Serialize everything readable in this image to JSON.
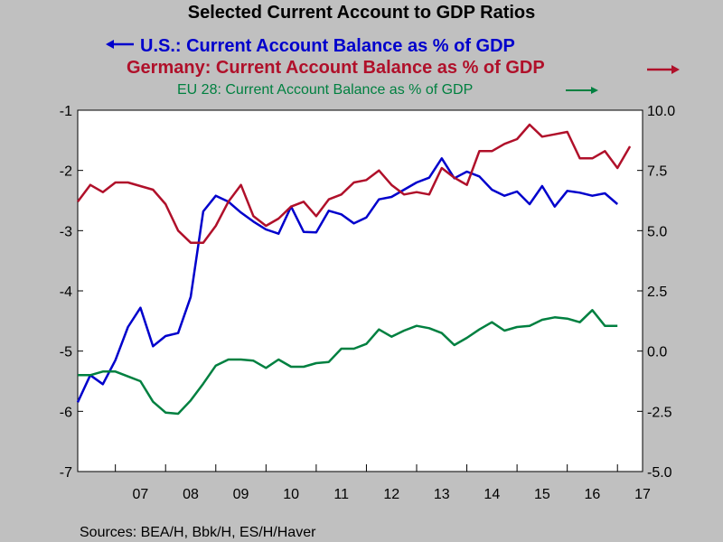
{
  "chart_data": {
    "type": "line",
    "title": "Selected Current Account to GDP Ratios",
    "source": "Sources:  BEA/H, Bbk/H, ES/H/Haver",
    "x_labels": [
      "07",
      "08",
      "09",
      "10",
      "11",
      "12",
      "13",
      "14",
      "15",
      "16",
      "17"
    ],
    "left_axis": {
      "ylim": [
        -7,
        -1
      ],
      "ticks": [
        "-1",
        "-2",
        "-3",
        "-4",
        "-5",
        "-6",
        "-7"
      ]
    },
    "right_axis": {
      "ylim": [
        -5.0,
        10.0
      ],
      "ticks": [
        "10.0",
        "7.5",
        "5.0",
        "2.5",
        "0.0",
        "-2.5",
        "-5.0"
      ]
    },
    "series": [
      {
        "name": "U.S.: Current Account Balance as % of GDP",
        "axis": "left",
        "arrow": "left",
        "color": "#0000cc",
        "x": [
          2006.25,
          2006.5,
          2006.75,
          2007.0,
          2007.25,
          2007.5,
          2007.75,
          2008.0,
          2008.25,
          2008.5,
          2008.75,
          2009.0,
          2009.25,
          2009.5,
          2009.75,
          2010.0,
          2010.25,
          2010.5,
          2010.75,
          2011.0,
          2011.25,
          2011.5,
          2011.75,
          2012.0,
          2012.25,
          2012.5,
          2012.75,
          2013.0,
          2013.25,
          2013.5,
          2013.75,
          2014.0,
          2014.25,
          2014.5,
          2014.75,
          2015.0,
          2015.25,
          2015.5,
          2015.75,
          2016.0,
          2016.25,
          2016.5,
          2016.75,
          2017.0
        ],
        "values": [
          -5.85,
          -5.4,
          -5.55,
          -5.15,
          -4.6,
          -4.28,
          -4.92,
          -4.75,
          -4.7,
          -4.1,
          -2.68,
          -2.42,
          -2.52,
          -2.7,
          -2.85,
          -2.98,
          -3.05,
          -2.6,
          -3.02,
          -3.03,
          -2.67,
          -2.73,
          -2.88,
          -2.78,
          -2.48,
          -2.44,
          -2.32,
          -2.2,
          -2.12,
          -1.8,
          -2.13,
          -2.02,
          -2.1,
          -2.32,
          -2.42,
          -2.35,
          -2.56,
          -2.26,
          -2.6,
          -2.34,
          -2.37,
          -2.42,
          -2.38,
          -2.56
        ]
      },
      {
        "name": "Germany: Current Account Balance as % of GDP",
        "axis": "right",
        "arrow": "right",
        "color": "#b0102a",
        "x": [
          2006.25,
          2006.5,
          2006.75,
          2007.0,
          2007.25,
          2007.5,
          2007.75,
          2008.0,
          2008.25,
          2008.5,
          2008.75,
          2009.0,
          2009.25,
          2009.5,
          2009.75,
          2010.0,
          2010.25,
          2010.5,
          2010.75,
          2011.0,
          2011.25,
          2011.5,
          2011.75,
          2012.0,
          2012.25,
          2012.5,
          2012.75,
          2013.0,
          2013.25,
          2013.5,
          2013.75,
          2014.0,
          2014.25,
          2014.5,
          2014.75,
          2015.0,
          2015.25,
          2015.5,
          2015.75,
          2016.0,
          2016.25,
          2016.5,
          2016.75,
          2017.0,
          2017.25
        ],
        "values": [
          6.2,
          6.9,
          6.6,
          7.0,
          7.0,
          6.85,
          6.7,
          6.1,
          5.0,
          4.5,
          4.5,
          5.2,
          6.2,
          6.9,
          5.6,
          5.2,
          5.5,
          6.0,
          6.2,
          5.6,
          6.3,
          6.5,
          7.0,
          7.1,
          7.5,
          6.9,
          6.5,
          6.6,
          6.5,
          7.6,
          7.2,
          6.9,
          8.3,
          8.3,
          8.6,
          8.8,
          9.4,
          8.9,
          9.0,
          9.1,
          8.0,
          8.0,
          8.3,
          7.6,
          8.5
        ]
      },
      {
        "name": "EU 28: Current Account Balance as % of GDP",
        "axis": "right",
        "arrow": "right",
        "color": "#008040",
        "x": [
          2006.25,
          2006.5,
          2006.75,
          2007.0,
          2007.25,
          2007.5,
          2007.75,
          2008.0,
          2008.25,
          2008.5,
          2008.75,
          2009.0,
          2009.25,
          2009.5,
          2009.75,
          2010.0,
          2010.25,
          2010.5,
          2010.75,
          2011.0,
          2011.25,
          2011.5,
          2011.75,
          2012.0,
          2012.25,
          2012.5,
          2012.75,
          2013.0,
          2013.25,
          2013.5,
          2013.75,
          2014.0,
          2014.25,
          2014.5,
          2014.75,
          2015.0,
          2015.25,
          2015.5,
          2015.75,
          2016.0,
          2016.25,
          2016.5,
          2016.75,
          2017.0
        ],
        "values": [
          -1.0,
          -1.0,
          -0.85,
          -0.85,
          -1.05,
          -1.25,
          -2.1,
          -2.55,
          -2.6,
          -2.05,
          -1.35,
          -0.6,
          -0.35,
          -0.35,
          -0.4,
          -0.7,
          -0.35,
          -0.65,
          -0.65,
          -0.5,
          -0.45,
          0.1,
          0.1,
          0.3,
          0.9,
          0.6,
          0.85,
          1.05,
          0.95,
          0.75,
          0.25,
          0.55,
          0.9,
          1.2,
          0.85,
          1.0,
          1.05,
          1.3,
          1.4,
          1.35,
          1.2,
          1.7,
          1.05,
          1.05
        ]
      }
    ]
  }
}
